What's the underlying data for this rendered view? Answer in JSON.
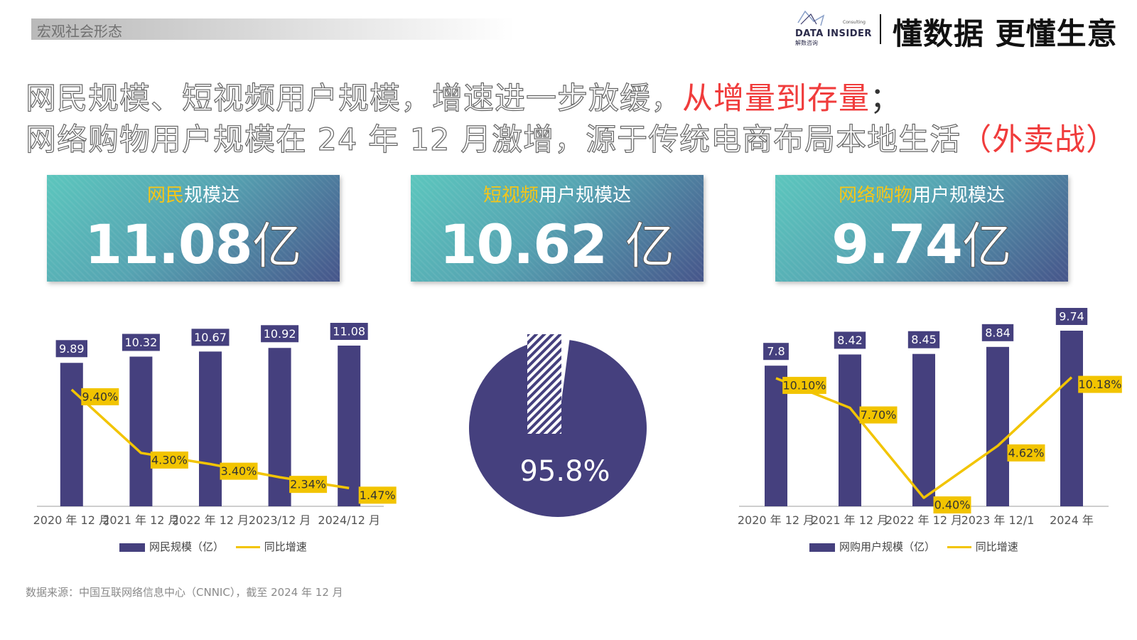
{
  "header": {
    "section": "宏观社会形态",
    "logo_name": "DATA INSIDER",
    "logo_cn": "解数咨询",
    "logo_small": "Consulting",
    "slogan": "懂数据 更懂生意"
  },
  "headline": {
    "line1_plain": "网民规模、短视频用户规模，增速进一步放缓，",
    "line1_highlight": "从增量到存量",
    "line1_end": "；",
    "line2_plain": "网络购物用户规模在 24 年 12 月激增，源于传统电商布局本地生活",
    "line2_highlight": "（外卖战）"
  },
  "cards": [
    {
      "accent": "网民",
      "rest": "规模达",
      "value": "11.08",
      "unit": "亿"
    },
    {
      "accent": "短视频",
      "rest": "用户规模达",
      "value": "10.62 ",
      "unit": "亿"
    },
    {
      "accent": "网络购物",
      "rest": "用户规模达",
      "value": "9.74",
      "unit": "亿"
    }
  ],
  "colors": {
    "bar": "#45407e",
    "line": "#f2c400",
    "highlight": "#f03c3c"
  },
  "chart_data": [
    {
      "type": "bar",
      "categories": [
        "2020 年 12 月",
        "2021 年 12 月",
        "2022 年 12 月",
        "2023/12 月",
        "2024/12 月"
      ],
      "series": [
        {
          "name": "网民规模（亿）",
          "type": "bar",
          "values": [
            9.89,
            10.32,
            10.67,
            10.92,
            11.08
          ],
          "labels": [
            "9.89",
            "10.32",
            "10.67",
            "10.92",
            "11.08"
          ]
        },
        {
          "name": "同比增速",
          "type": "line",
          "values": [
            9.4,
            4.3,
            3.4,
            2.34,
            1.47
          ],
          "labels": [
            "9.40%",
            "4.30%",
            "3.40%",
            "2.34%",
            "1.47%"
          ]
        }
      ],
      "legend": [
        "网民规模（亿）",
        "同比增速"
      ],
      "legend_position": "bottom"
    },
    {
      "type": "pie",
      "slices": [
        {
          "value": 95.8,
          "label": "95.8%"
        },
        {
          "value": 4.2,
          "label": ""
        }
      ]
    },
    {
      "type": "bar",
      "categories": [
        "2020 年 12 月",
        "2021 年 12 月",
        "2022 年 12 月",
        "2023 年 12/1",
        "2024 年"
      ],
      "series": [
        {
          "name": "网购用户规模（亿）",
          "type": "bar",
          "values": [
            7.8,
            8.42,
            8.45,
            8.84,
            9.74
          ],
          "labels": [
            "7.8",
            "8.42",
            "8.45",
            "8.84",
            "9.74"
          ]
        },
        {
          "name": "同比增速",
          "type": "line",
          "values": [
            10.1,
            7.7,
            0.4,
            4.62,
            10.18
          ],
          "labels": [
            "10.10%",
            "7.70%",
            "0.40%",
            "4.62%",
            "10.18%"
          ]
        }
      ],
      "legend": [
        "网购用户规模（亿）",
        "同比增速"
      ],
      "legend_position": "bottom"
    }
  ],
  "source": "数据来源：中国互联网络信息中心（CNNIC），截至 2024 年 12 月"
}
